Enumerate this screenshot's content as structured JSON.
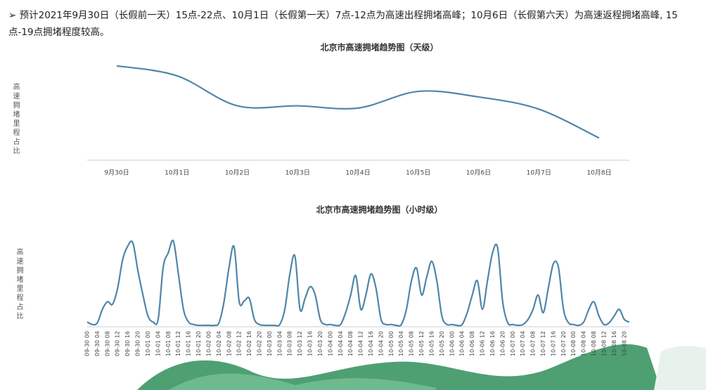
{
  "note": "➢ 预计2021年9月30日（长假前一天）15点-22点、10月1日（长假第一天）7点-12点为高速出程拥堵高峰；10月6日（长假第六天）为高速返程拥堵高峰, 15点-19点拥堵程度较高。",
  "chart_data": [
    {
      "type": "line",
      "title": "北京市高速拥堵趋势图（天级）",
      "ylabel": "高速拥堵里程占比",
      "color": "#4f86a8",
      "categories": [
        "9月30日",
        "10月1日",
        "10月2日",
        "10月3日",
        "10月4日",
        "10月5日",
        "10月6日",
        "10月7日",
        "10月8日"
      ],
      "values": [
        85,
        76,
        49,
        49,
        47,
        62,
        57,
        46,
        20
      ],
      "ylim": [
        0,
        100
      ]
    },
    {
      "type": "line",
      "title": "北京市高速拥堵趋势图（小时级）",
      "ylabel": "高速拥堵里程占比",
      "color": "#4f86a8",
      "categories": [
        "09-30 00",
        null,
        "09-30 04",
        null,
        "09-30 08",
        null,
        "09-30 12",
        null,
        "09-30 16",
        null,
        "09-30 20",
        null,
        "10-01 00",
        null,
        "10-01 04",
        null,
        "10-01 08",
        null,
        "10-01 12",
        null,
        "10-01 16",
        null,
        "10-01 20",
        null,
        "10-02 00",
        null,
        "10-02 04",
        null,
        "10-02 08",
        null,
        "10-02 12",
        null,
        "10-02 16",
        null,
        "10-02 20",
        null,
        "10-03 00",
        null,
        "10-03 04",
        null,
        "10-03 08",
        null,
        "10-03 12",
        null,
        "10-03 16",
        null,
        "10-03 20",
        null,
        "10-04 00",
        null,
        "10-04 04",
        null,
        "10-04 08",
        null,
        "10-04 12",
        null,
        "10-04 16",
        null,
        "10-04 20",
        null,
        "10-05 00",
        null,
        "10-05 04",
        null,
        "10-05 08",
        null,
        "10-05 12",
        null,
        "10-05 16",
        null,
        "10-05 20",
        null,
        "10-06 00",
        null,
        "10-06 04",
        null,
        "10-06 08",
        null,
        "10-06 12",
        null,
        "10-06 16",
        null,
        "10-06 20",
        null,
        "10-07 00",
        null,
        "10-07 04",
        null,
        "10-07 08",
        null,
        "10-07 12",
        null,
        "10-07 16",
        null,
        "10-07 20",
        null,
        "10-08 00",
        null,
        "10-08 04",
        null,
        "10-08 08",
        null,
        "10-08 12",
        null,
        "10-08 16",
        null,
        "10-08 20",
        null
      ],
      "values": [
        4,
        1,
        3,
        19,
        28,
        25,
        44,
        78,
        94,
        98,
        65,
        36,
        11,
        4,
        7,
        69,
        86,
        100,
        61,
        19,
        4,
        1,
        0,
        0,
        0,
        0,
        3,
        28,
        69,
        93,
        28,
        29,
        32,
        7,
        1,
        0,
        0,
        0,
        1,
        19,
        61,
        82,
        19,
        32,
        46,
        36,
        7,
        1,
        1,
        0,
        1,
        15,
        36,
        59,
        19,
        36,
        61,
        44,
        7,
        1,
        1,
        0,
        1,
        19,
        53,
        68,
        36,
        57,
        76,
        53,
        11,
        1,
        1,
        0,
        1,
        15,
        36,
        53,
        19,
        53,
        86,
        92,
        28,
        3,
        1,
        0,
        1,
        7,
        19,
        36,
        15,
        44,
        73,
        69,
        19,
        3,
        1,
        0,
        4,
        19,
        28,
        11,
        1,
        3,
        11,
        19,
        7,
        4
      ],
      "ylim": [
        0,
        100
      ]
    }
  ]
}
